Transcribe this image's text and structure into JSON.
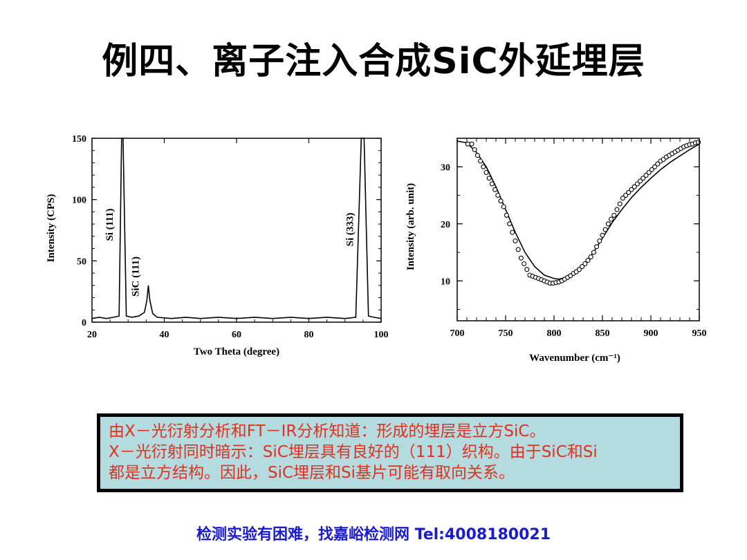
{
  "slide": {
    "title": "例四、离子注入合成SiC外延埋层",
    "note_lines": [
      "由X－光衍射分析和FT－IR分析知道：形成的埋层是立方SiC。",
      "X－光衍射同时暗示：SiC埋层具有良好的（111）织构。由于SiC和Si",
      "都是立方结构。因此，SiC埋层和Si基片可能有取向关系。"
    ],
    "footer": "检测实验有困难，找嘉峪检测网 Tel:4008180021"
  },
  "chart_data": [
    {
      "type": "line",
      "xlabel": "Two Theta (degree)",
      "ylabel": "Intensity (CPS)",
      "xlim": [
        20,
        100
      ],
      "ylim": [
        0,
        150
      ],
      "xticks": [
        "20",
        "40",
        "60",
        "80",
        "100"
      ],
      "yticks": [
        "0",
        "50",
        "100",
        "150"
      ],
      "annotations": [
        {
          "text": "Si (111)",
          "x": 28.4
        },
        {
          "text": "SiC (111)",
          "x": 35.6
        },
        {
          "text": "Si (333)",
          "x": 94.9
        }
      ],
      "series": [
        {
          "x": [
            20,
            22,
            24,
            26,
            27.5,
            28.2,
            28.4,
            28.6,
            29.5,
            31,
            33,
            34.5,
            35.2,
            35.6,
            36.0,
            36.8,
            38,
            42,
            46,
            50,
            55,
            60,
            65,
            70,
            75,
            80,
            85,
            90,
            93,
            94.5,
            94.9,
            95.3,
            96.5,
            98,
            100
          ],
          "y": [
            3,
            4,
            3,
            4,
            5,
            150,
            150,
            150,
            5,
            4,
            5,
            8,
            18,
            30,
            18,
            7,
            4,
            3,
            4,
            3,
            4,
            3,
            4,
            3,
            4,
            3,
            4,
            3,
            4,
            150,
            150,
            150,
            5,
            4,
            3
          ]
        }
      ]
    },
    {
      "type": "scatter",
      "xlabel": "Wavenumber (cm⁻¹)",
      "ylabel": "Intensity (arb. unit)",
      "xlim": [
        700,
        950
      ],
      "ylim": [
        3,
        35
      ],
      "xticks": [
        "700",
        "750",
        "800",
        "850",
        "900",
        "950"
      ],
      "yticks": [
        "10",
        "20",
        "30"
      ],
      "series": [
        {
          "kind": "points",
          "x": [
            711,
            715,
            718,
            721,
            724,
            727,
            730,
            733,
            736,
            739,
            742,
            745,
            748,
            751,
            754,
            757,
            760,
            763,
            766,
            769,
            772,
            775,
            778,
            781,
            784,
            787,
            790,
            793,
            796,
            799,
            802,
            805,
            808,
            811,
            814,
            817,
            820,
            823,
            826,
            829,
            832,
            835,
            838,
            841,
            844,
            847,
            850,
            853,
            856,
            859,
            862,
            865,
            868,
            871,
            874,
            877,
            880,
            883,
            886,
            889,
            892,
            895,
            898,
            901,
            904,
            907,
            910,
            913,
            916,
            919,
            922,
            925,
            928,
            931,
            934,
            937,
            940,
            943,
            946,
            949
          ],
          "y": [
            34.0,
            34.0,
            33.0,
            32.0,
            31.0,
            30.0,
            29.0,
            28.0,
            27.0,
            26.0,
            25.0,
            24.0,
            23.0,
            21.5,
            20.0,
            18.5,
            17.0,
            15.5,
            14.0,
            13.0,
            12.0,
            11.0,
            10.8,
            10.6,
            10.4,
            10.2,
            10.0,
            9.8,
            9.6,
            9.6,
            9.7,
            9.8,
            10.0,
            10.3,
            10.6,
            10.9,
            11.3,
            11.6,
            12.0,
            12.5,
            13.0,
            13.6,
            14.2,
            15.0,
            16.0,
            17.0,
            18.0,
            19.0,
            20.0,
            20.8,
            21.5,
            22.5,
            23.5,
            24.5,
            25.0,
            25.5,
            26.0,
            26.5,
            27.0,
            27.5,
            28.0,
            28.5,
            29.0,
            29.5,
            30.0,
            30.5,
            31.0,
            31.3,
            31.7,
            32.0,
            32.3,
            32.6,
            32.9,
            33.2,
            33.5,
            33.7,
            33.9,
            34.0,
            34.2,
            34.3
          ]
        },
        {
          "kind": "curve",
          "x": [
            700,
            710,
            720,
            730,
            740,
            750,
            760,
            770,
            780,
            790,
            800,
            805,
            810,
            820,
            830,
            840,
            850,
            860,
            870,
            880,
            890,
            900,
            910,
            920,
            930,
            940,
            950
          ],
          "y": [
            34.5,
            34.2,
            32.5,
            30.0,
            26.5,
            22.5,
            18.5,
            15.0,
            12.5,
            11.0,
            10.4,
            10.3,
            10.5,
            11.3,
            12.8,
            14.8,
            17.5,
            20.2,
            22.5,
            24.6,
            26.4,
            28.0,
            29.5,
            30.8,
            31.9,
            33.0,
            34.0
          ]
        }
      ]
    }
  ]
}
